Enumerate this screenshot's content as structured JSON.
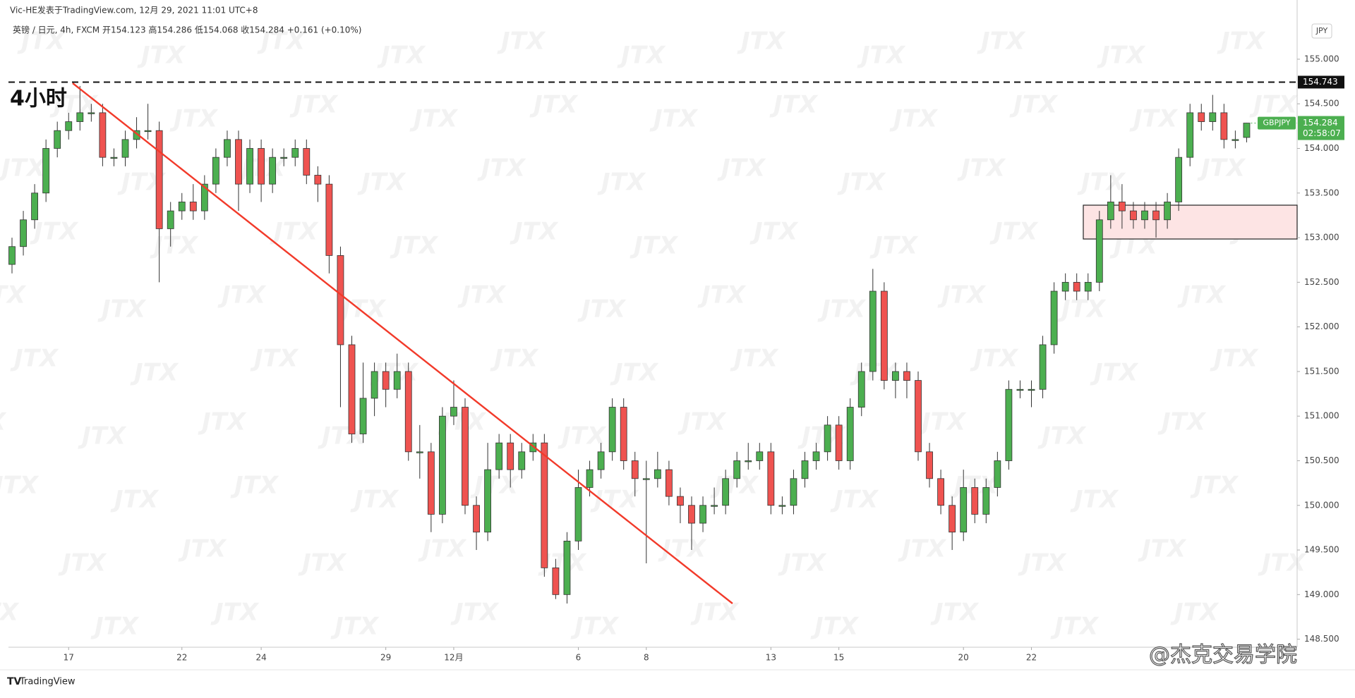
{
  "header": "Vic-HE发表于TradingView.com, 12月 29, 2021 11:01 UTC+8",
  "chart_data": {
    "type": "candlestick",
    "legend": "英镑 / 日元, 4h, FXCM  开154.123  高154.286  低154.068  收154.284  +0.161 (+0.10%)",
    "annotation": "4小时",
    "currency": "JPY",
    "symbol": "GBPJPY",
    "countdown": "02:58:07",
    "watermark": "JTX",
    "level": {
      "value": 154.743,
      "label": "154.743"
    },
    "up_color": "#4caf50",
    "down_color": "#ef5350",
    "categories": [
      null,
      null,
      null,
      null,
      null,
      "17",
      null,
      null,
      null,
      null,
      null,
      null,
      null,
      null,
      null,
      "22",
      null,
      null,
      null,
      null,
      null,
      null,
      "24",
      null,
      null,
      null,
      null,
      null,
      null,
      null,
      null,
      null,
      null,
      "29",
      null,
      null,
      null,
      null,
      null,
      "12月",
      null,
      null,
      null,
      null,
      null,
      null,
      null,
      null,
      null,
      null,
      "6",
      null,
      null,
      null,
      null,
      null,
      "8",
      null,
      null,
      null,
      null,
      null,
      null,
      null,
      null,
      null,
      null,
      "13",
      null,
      null,
      null,
      null,
      null,
      "15",
      null,
      null,
      null,
      null,
      null,
      null,
      null,
      null,
      null,
      null,
      "20",
      null,
      null,
      null,
      null,
      null,
      "22",
      null,
      null,
      null,
      null,
      null,
      null,
      null,
      null,
      null,
      null,
      null,
      null,
      null,
      null,
      null,
      null,
      null,
      null,
      null
    ],
    "open": [
      152.7,
      152.9,
      153.2,
      153.5,
      154.0,
      154.2,
      154.3,
      154.4,
      154.4,
      153.9,
      153.9,
      154.1,
      154.2,
      154.2,
      153.1,
      153.3,
      153.4,
      153.3,
      153.6,
      153.9,
      154.1,
      153.6,
      154.0,
      153.6,
      153.9,
      153.9,
      154.0,
      153.7,
      153.6,
      152.8,
      151.8,
      150.8,
      151.2,
      151.5,
      151.3,
      151.5,
      150.6,
      150.6,
      149.9,
      151.0,
      151.1,
      150.0,
      149.7,
      150.4,
      150.7,
      150.4,
      150.6,
      150.7,
      149.3,
      149.0,
      149.6,
      150.2,
      150.4,
      150.6,
      151.1,
      150.5,
      150.3,
      150.3,
      150.4,
      150.1,
      150.0,
      149.8,
      150.0,
      150.0,
      150.3,
      150.5,
      150.5,
      150.6,
      150.0,
      150.0,
      150.3,
      150.5,
      150.6,
      150.9,
      150.5,
      151.1,
      151.5,
      152.4,
      151.4,
      151.5,
      151.4,
      150.6,
      150.3,
      150.0,
      149.7,
      150.2,
      149.9,
      150.2,
      150.5,
      151.3,
      151.3,
      151.3,
      151.8,
      152.4,
      152.5,
      152.4,
      152.5,
      153.2,
      153.4,
      153.3,
      153.2,
      153.3,
      153.2,
      153.4,
      153.9,
      154.4,
      154.3,
      154.4,
      154.1,
      154.123
    ],
    "high": [
      153.0,
      153.3,
      153.6,
      154.1,
      154.3,
      154.4,
      154.7,
      154.5,
      154.5,
      154.0,
      154.2,
      154.35,
      154.5,
      154.3,
      153.4,
      153.5,
      153.6,
      153.7,
      154.0,
      154.2,
      154.2,
      154.1,
      154.1,
      154.0,
      154.0,
      154.1,
      154.1,
      153.8,
      153.7,
      152.9,
      151.9,
      151.6,
      151.6,
      151.6,
      151.7,
      151.6,
      150.9,
      150.7,
      151.1,
      151.4,
      151.2,
      150.1,
      150.7,
      150.8,
      150.8,
      150.7,
      150.8,
      150.8,
      149.4,
      149.7,
      150.4,
      150.5,
      150.7,
      151.2,
      151.2,
      150.6,
      150.5,
      150.6,
      150.5,
      150.2,
      150.1,
      150.1,
      150.2,
      150.4,
      150.6,
      150.7,
      150.7,
      150.7,
      150.1,
      150.4,
      150.6,
      150.7,
      151.0,
      151.0,
      151.2,
      151.6,
      152.65,
      152.5,
      151.6,
      151.6,
      151.5,
      150.7,
      150.4,
      150.1,
      150.4,
      150.3,
      150.3,
      150.6,
      151.4,
      151.4,
      151.4,
      151.9,
      152.5,
      152.6,
      152.6,
      152.6,
      153.3,
      153.7,
      153.6,
      153.4,
      153.4,
      153.4,
      153.5,
      154.0,
      154.5,
      154.5,
      154.6,
      154.5,
      154.2,
      154.286
    ],
    "low": [
      152.6,
      152.8,
      153.1,
      153.4,
      153.9,
      154.1,
      154.2,
      154.3,
      153.8,
      153.8,
      153.8,
      154.0,
      154.1,
      152.5,
      152.9,
      153.2,
      153.2,
      153.2,
      153.5,
      153.8,
      153.3,
      153.5,
      153.4,
      153.5,
      153.8,
      153.8,
      153.6,
      153.4,
      152.6,
      151.1,
      150.7,
      150.7,
      151.0,
      151.1,
      151.2,
      150.5,
      150.3,
      149.7,
      149.8,
      150.9,
      149.9,
      149.5,
      149.6,
      150.3,
      150.2,
      150.3,
      150.5,
      149.2,
      148.95,
      148.9,
      149.5,
      150.1,
      150.3,
      150.5,
      150.4,
      150.1,
      149.35,
      150.2,
      150.0,
      149.8,
      149.5,
      149.7,
      149.9,
      149.9,
      150.2,
      150.4,
      150.4,
      149.9,
      149.9,
      149.9,
      150.2,
      150.4,
      150.5,
      150.4,
      150.4,
      151.0,
      151.4,
      151.3,
      151.2,
      151.2,
      150.5,
      150.2,
      149.9,
      149.5,
      149.6,
      149.8,
      149.8,
      150.1,
      150.4,
      151.2,
      151.1,
      151.2,
      151.7,
      152.3,
      152.3,
      152.3,
      152.4,
      153.1,
      153.1,
      153.1,
      153.1,
      153.0,
      153.1,
      153.3,
      153.8,
      154.2,
      154.2,
      154.0,
      154.0,
      154.068
    ],
    "close": [
      152.9,
      153.2,
      153.5,
      154.0,
      154.2,
      154.3,
      154.4,
      154.4,
      153.9,
      153.9,
      154.1,
      154.2,
      154.2,
      153.1,
      153.3,
      153.4,
      153.3,
      153.6,
      153.9,
      154.1,
      153.6,
      154.0,
      153.6,
      153.9,
      153.9,
      154.0,
      153.7,
      153.6,
      152.8,
      151.8,
      150.8,
      151.2,
      151.5,
      151.3,
      151.5,
      150.6,
      150.6,
      149.9,
      151.0,
      151.1,
      150.0,
      149.7,
      150.4,
      150.7,
      150.4,
      150.6,
      150.7,
      149.3,
      149.0,
      149.6,
      150.2,
      150.4,
      150.6,
      151.1,
      150.5,
      150.3,
      150.3,
      150.4,
      150.1,
      150.0,
      149.8,
      150.0,
      150.0,
      150.3,
      150.5,
      150.5,
      150.6,
      150.0,
      150.0,
      150.3,
      150.5,
      150.6,
      150.9,
      150.5,
      151.1,
      151.5,
      152.4,
      151.4,
      151.5,
      151.4,
      150.6,
      150.3,
      150.0,
      149.7,
      150.2,
      149.9,
      150.2,
      150.5,
      151.3,
      151.3,
      151.3,
      151.8,
      152.4,
      152.5,
      152.4,
      152.5,
      153.2,
      153.4,
      153.3,
      153.2,
      153.3,
      153.2,
      153.4,
      153.9,
      154.4,
      154.3,
      154.4,
      154.1,
      154.1,
      154.284
    ],
    "ylim": [
      148.41,
      155.45
    ],
    "yticks": [
      {
        "value": 148.5,
        "label": "148.500"
      },
      {
        "value": 149,
        "label": "149.000"
      },
      {
        "value": 149.5,
        "label": "149.500"
      },
      {
        "value": 150,
        "label": "150.000"
      },
      {
        "value": 150.5,
        "label": "150.500"
      },
      {
        "value": 151,
        "label": "151.000"
      },
      {
        "value": 151.5,
        "label": "151.500"
      },
      {
        "value": 152,
        "label": "152.000"
      },
      {
        "value": 152.5,
        "label": "152.500"
      },
      {
        "value": 153,
        "label": "153.000"
      },
      {
        "value": 153.5,
        "label": "153.500"
      },
      {
        "value": 154,
        "label": "154.000"
      },
      {
        "value": 154.5,
        "label": "154.500"
      },
      {
        "value": 155,
        "label": "155.000"
      }
    ],
    "grid": false
  },
  "footer": {
    "logo": "TradingView",
    "credit": "@杰克交易学院"
  }
}
